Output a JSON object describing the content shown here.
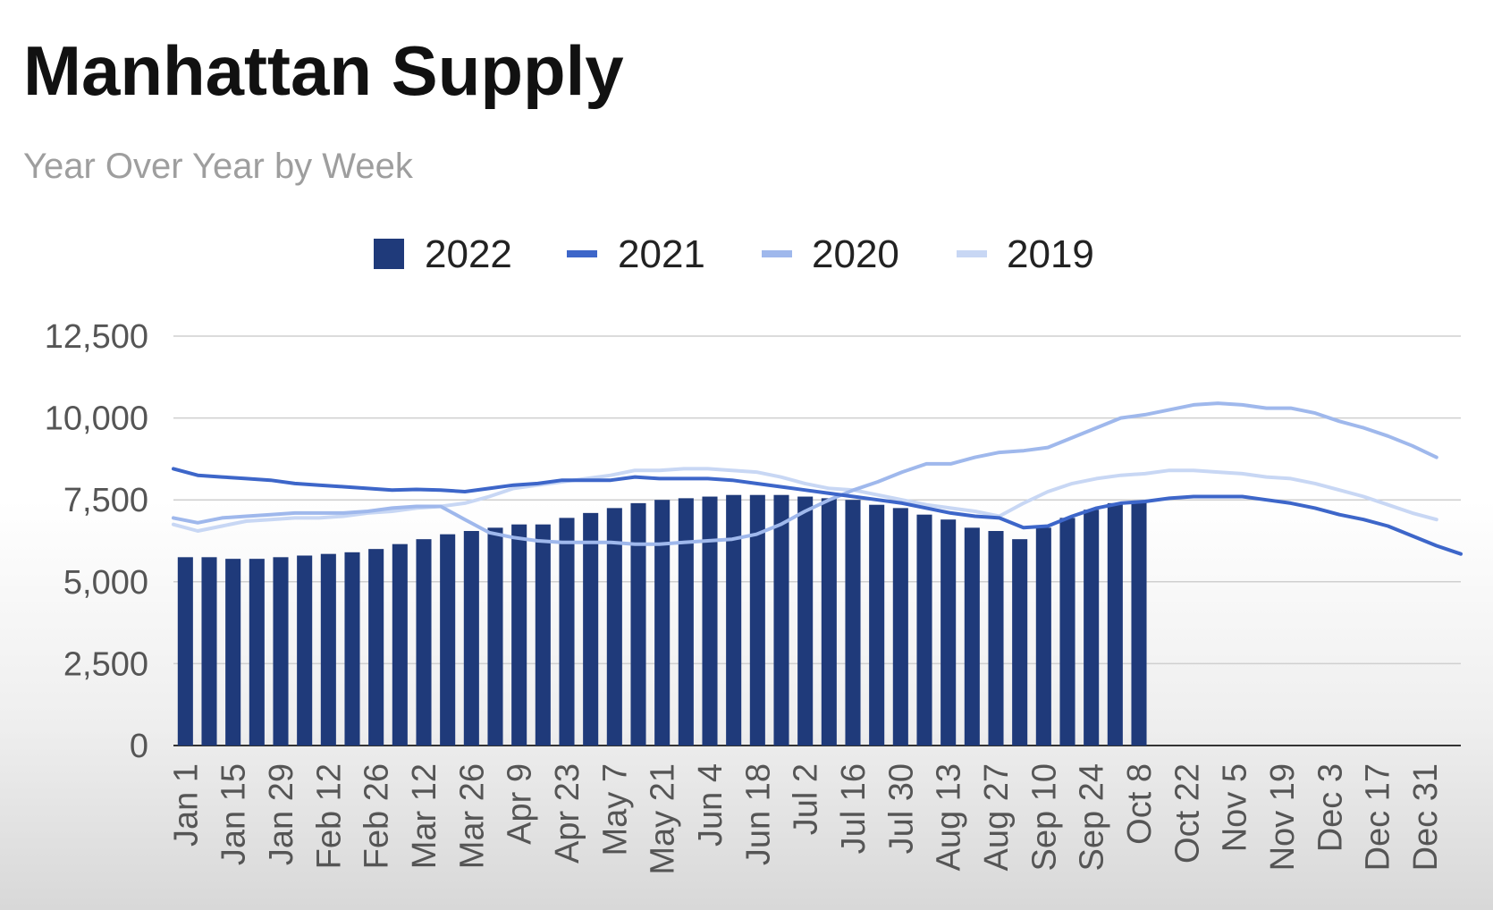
{
  "chart_data": {
    "type": "bar",
    "title": "Manhattan Supply",
    "subtitle": "Year Over Year by Week",
    "legend_position": "top",
    "grid": true,
    "ylim": [
      0,
      12500
    ],
    "yticks": [
      "0",
      "2,500",
      "5,000",
      "7,500",
      "10,000",
      "12,500"
    ],
    "ytick_values": [
      0,
      2500,
      5000,
      7500,
      10000,
      12500
    ],
    "x_tick_labels": [
      "Jan 1",
      "Jan 15",
      "Jan 29",
      "Feb 12",
      "Feb 26",
      "Mar 12",
      "Mar 26",
      "Apr 9",
      "Apr 23",
      "May 7",
      "May 21",
      "Jun 4",
      "Jun 18",
      "Jul 2",
      "Jul 16",
      "Jul 30",
      "Aug 13",
      "Aug 27",
      "Sep 10",
      "Sep 24",
      "Oct 8",
      "Oct 22",
      "Nov 5",
      "Nov 19",
      "Dec 3",
      "Dec 17",
      "Dec 31"
    ],
    "colors": {
      "2022": "#1f3a7a",
      "2021": "#3d66c9",
      "2020": "#9fb8ec",
      "2019": "#c8d7f4"
    },
    "series": [
      {
        "name": "2022",
        "kind": "bar",
        "values": [
          5750,
          5750,
          5700,
          5700,
          5750,
          5800,
          5850,
          5900,
          6000,
          6150,
          6300,
          6450,
          6550,
          6650,
          6750,
          6750,
          6950,
          7100,
          7250,
          7400,
          7500,
          7550,
          7600,
          7650,
          7650,
          7650,
          7600,
          7550,
          7500,
          7350,
          7250,
          7050,
          6900,
          6650,
          6550,
          6300,
          6650,
          6950,
          7200,
          7400,
          7450
        ]
      },
      {
        "name": "2021",
        "kind": "line",
        "values": [
          8450,
          8250,
          8200,
          8150,
          8100,
          8000,
          7950,
          7900,
          7850,
          7800,
          7820,
          7800,
          7750,
          7850,
          7950,
          8000,
          8100,
          8100,
          8100,
          8200,
          8150,
          8150,
          8150,
          8100,
          8000,
          7900,
          7800,
          7700,
          7600,
          7500,
          7400,
          7250,
          7100,
          7000,
          6950,
          6650,
          6700,
          7000,
          7250,
          7400,
          7450,
          7550,
          7600,
          7600,
          7600,
          7500,
          7400,
          7250,
          7050,
          6900,
          6700,
          6400,
          6100,
          5850
        ]
      },
      {
        "name": "2020",
        "kind": "line",
        "values": [
          6950,
          6800,
          6950,
          7000,
          7050,
          7100,
          7100,
          7100,
          7150,
          7250,
          7300,
          7300,
          6900,
          6500,
          6350,
          6250,
          6200,
          6200,
          6200,
          6150,
          6150,
          6200,
          6250,
          6300,
          6450,
          6750,
          7150,
          7500,
          7800,
          8050,
          8350,
          8600,
          8600,
          8800,
          8950,
          9000,
          9100,
          9400,
          9700,
          10000,
          10100,
          10250,
          10400,
          10450,
          10400,
          10300,
          10300,
          10150,
          9900,
          9700,
          9450,
          9150,
          8800
        ]
      },
      {
        "name": "2019",
        "kind": "line",
        "values": [
          6750,
          6550,
          6700,
          6850,
          6900,
          6950,
          6950,
          7000,
          7100,
          7150,
          7250,
          7300,
          7400,
          7600,
          7850,
          7950,
          8050,
          8150,
          8250,
          8400,
          8400,
          8450,
          8450,
          8400,
          8350,
          8200,
          8000,
          7850,
          7800,
          7650,
          7500,
          7350,
          7250,
          7150,
          7000,
          7400,
          7750,
          8000,
          8150,
          8250,
          8300,
          8400,
          8400,
          8350,
          8300,
          8200,
          8150,
          8000,
          7800,
          7600,
          7350,
          7100,
          6900
        ]
      }
    ]
  }
}
